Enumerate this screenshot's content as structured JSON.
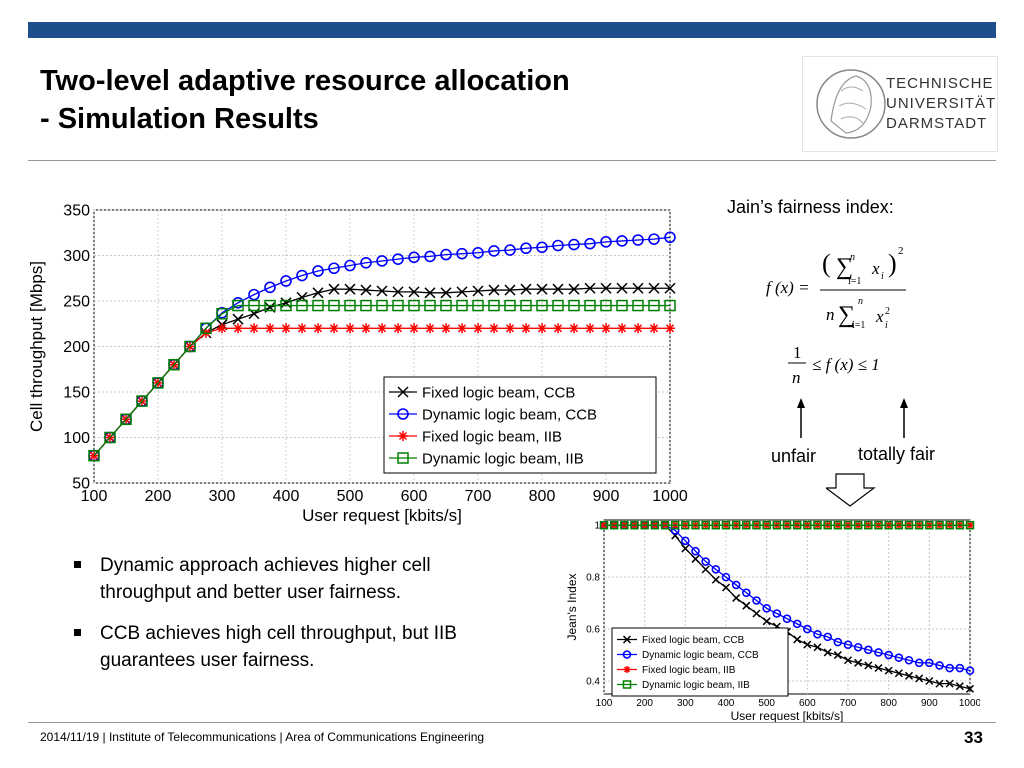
{
  "slide": {
    "title_line1": "Two-level adaptive resource allocation",
    "title_line2": "- Simulation Results",
    "logo_lines": [
      "TECHNISCHE",
      "UNIVERSITÄT",
      "DARMSTADT"
    ],
    "bullets": [
      " Dynamic approach achieves higher cell throughput and better user fairness.",
      " CCB achieves high cell throughput, but IIB guarantees user fairness."
    ],
    "fairness_label": "Jain’s fairness index:",
    "formula": {
      "lhs": "f (x) =",
      "numerator": "(∑ x )²",
      "denominator": "n∑ x ²",
      "sum_upper": "n",
      "sum_lower": "i=1",
      "var_sub": "i",
      "bound": "≤ f (x) ≤ 1",
      "bound_frac_num": "1",
      "bound_frac_den": "n",
      "exp": "2"
    },
    "unfair_label": "unfair",
    "totally_fair_label": "totally fair",
    "footer_text": "2014/11/19  |  Institute of Telecommunications   |  Area of Communications Engineering",
    "page_number": "33",
    "colors": {
      "topbar": "#1f4e8c"
    }
  },
  "chart_data": [
    {
      "type": "line",
      "xlabel": "User request [kbits/s]",
      "ylabel": "Cell throughput [Mbps]",
      "xlim": [
        100,
        1000
      ],
      "ylim": [
        50,
        350
      ],
      "xticks": [
        100,
        200,
        300,
        400,
        500,
        600,
        700,
        800,
        900,
        1000
      ],
      "yticks": [
        50,
        100,
        150,
        200,
        250,
        300,
        350
      ],
      "grid": true,
      "legend_position": "lower-right",
      "x": [
        100,
        125,
        150,
        175,
        200,
        225,
        250,
        275,
        300,
        325,
        350,
        375,
        400,
        425,
        450,
        475,
        500,
        525,
        550,
        575,
        600,
        625,
        650,
        675,
        700,
        725,
        750,
        775,
        800,
        825,
        850,
        875,
        900,
        925,
        950,
        975,
        1000
      ],
      "series": [
        {
          "name": "Fixed logic beam, CCB",
          "color": "#000000",
          "marker": "x",
          "values": [
            80,
            100,
            120,
            140,
            160,
            180,
            200,
            215,
            224,
            230,
            236,
            243,
            248,
            254,
            259,
            263,
            263,
            262,
            261,
            260,
            260,
            259,
            259,
            260,
            261,
            262,
            262,
            263,
            263,
            263,
            263,
            264,
            264,
            264,
            264,
            264,
            264
          ]
        },
        {
          "name": "Dynamic logic beam, CCB",
          "color": "#0000ff",
          "marker": "o",
          "values": [
            80,
            100,
            120,
            140,
            160,
            180,
            200,
            220,
            237,
            248,
            257,
            265,
            272,
            278,
            283,
            286,
            289,
            292,
            294,
            296,
            298,
            299,
            301,
            302,
            303,
            305,
            306,
            308,
            309,
            311,
            312,
            313,
            315,
            316,
            317,
            318,
            320
          ]
        },
        {
          "name": "Fixed logic beam, IIB",
          "color": "#ff0000",
          "marker": "*",
          "values": [
            80,
            100,
            120,
            140,
            160,
            180,
            200,
            215,
            220,
            220,
            220,
            220,
            220,
            220,
            220,
            220,
            220,
            220,
            220,
            220,
            220,
            220,
            220,
            220,
            220,
            220,
            220,
            220,
            220,
            220,
            220,
            220,
            220,
            220,
            220,
            220,
            220
          ]
        },
        {
          "name": "Dynamic logic beam, IIB",
          "color": "#008000",
          "marker": "s",
          "values": [
            80,
            100,
            120,
            140,
            160,
            180,
            200,
            220,
            236,
            245,
            245,
            245,
            245,
            245,
            245,
            245,
            245,
            245,
            245,
            245,
            245,
            245,
            245,
            245,
            245,
            245,
            245,
            245,
            245,
            245,
            245,
            245,
            245,
            245,
            245,
            245,
            245
          ]
        }
      ]
    },
    {
      "type": "line",
      "xlabel": "User request [kbits/s]",
      "ylabel": "Jean's Index",
      "xlim": [
        100,
        1000
      ],
      "ylim": [
        0.35,
        1.02
      ],
      "xticks": [
        100,
        200,
        300,
        400,
        500,
        600,
        700,
        800,
        900,
        1000
      ],
      "yticks": [
        0.4,
        0.6,
        0.8,
        1
      ],
      "grid": true,
      "legend_position": "lower-left",
      "x": [
        100,
        125,
        150,
        175,
        200,
        225,
        250,
        275,
        300,
        325,
        350,
        375,
        400,
        425,
        450,
        475,
        500,
        525,
        550,
        575,
        600,
        625,
        650,
        675,
        700,
        725,
        750,
        775,
        800,
        825,
        850,
        875,
        900,
        925,
        950,
        975,
        1000
      ],
      "series": [
        {
          "name": "Fixed logic beam, CCB",
          "color": "#000000",
          "marker": "x",
          "values": [
            1,
            1,
            1,
            1,
            1,
            1,
            1,
            0.96,
            0.91,
            0.87,
            0.83,
            0.79,
            0.76,
            0.72,
            0.69,
            0.66,
            0.63,
            0.61,
            0.59,
            0.56,
            0.54,
            0.53,
            0.51,
            0.5,
            0.48,
            0.47,
            0.46,
            0.45,
            0.44,
            0.43,
            0.42,
            0.41,
            0.4,
            0.39,
            0.39,
            0.38,
            0.37
          ]
        },
        {
          "name": "Dynamic logic beam, CCB",
          "color": "#0000ff",
          "marker": "o",
          "values": [
            1,
            1,
            1,
            1,
            1,
            1,
            1,
            0.98,
            0.94,
            0.9,
            0.86,
            0.83,
            0.8,
            0.77,
            0.74,
            0.71,
            0.68,
            0.66,
            0.64,
            0.62,
            0.6,
            0.58,
            0.57,
            0.55,
            0.54,
            0.53,
            0.52,
            0.51,
            0.5,
            0.49,
            0.48,
            0.47,
            0.47,
            0.46,
            0.45,
            0.45,
            0.44
          ]
        },
        {
          "name": "Fixed logic beam, IIB",
          "color": "#ff0000",
          "marker": "*",
          "values": [
            1,
            1,
            1,
            1,
            1,
            1,
            1,
            1,
            1,
            1,
            1,
            1,
            1,
            1,
            1,
            1,
            1,
            1,
            1,
            1,
            1,
            1,
            1,
            1,
            1,
            1,
            1,
            1,
            1,
            1,
            1,
            1,
            1,
            1,
            1,
            1,
            1
          ]
        },
        {
          "name": "Dynamic logic beam, IIB",
          "color": "#008000",
          "marker": "s",
          "values": [
            1,
            1,
            1,
            1,
            1,
            1,
            1,
            1,
            1,
            1,
            1,
            1,
            1,
            1,
            1,
            1,
            1,
            1,
            1,
            1,
            1,
            1,
            1,
            1,
            1,
            1,
            1,
            1,
            1,
            1,
            1,
            1,
            1,
            1,
            1,
            1,
            1
          ]
        }
      ]
    }
  ]
}
